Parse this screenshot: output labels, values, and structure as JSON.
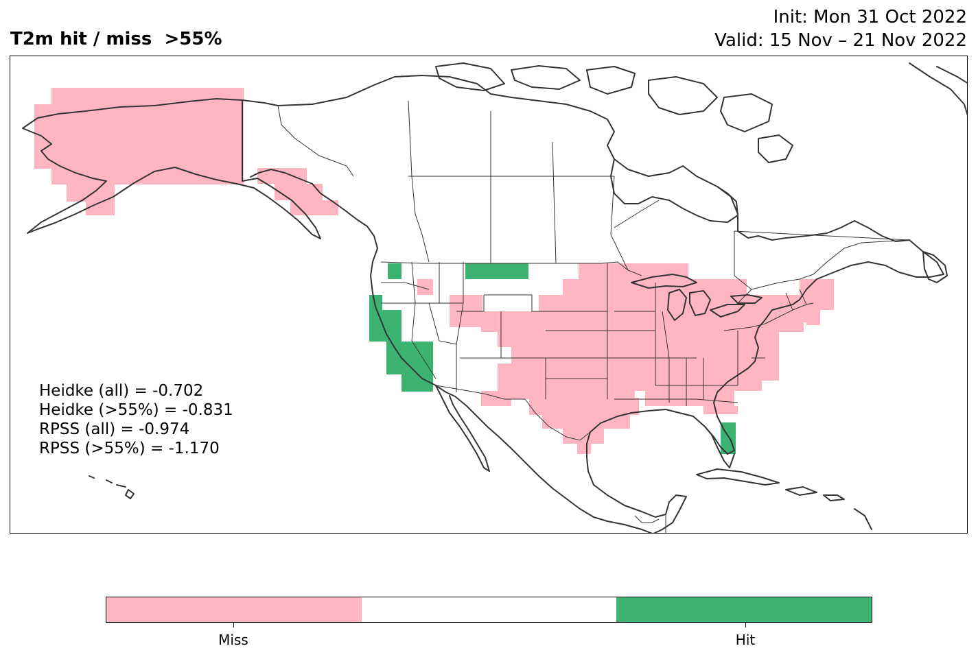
{
  "title": "T2m hit / miss  >55%",
  "init_text": "Init: Mon 31 Oct 2022",
  "valid_text": "Valid: 15 Nov – 21 Nov 2022",
  "stats": [
    "Heidke (all) = -0.702",
    "Heidke (>55%) = -0.831",
    "RPSS (all) = -0.974",
    "RPSS (>55%) = -1.170"
  ],
  "colors": {
    "miss": "#ffb6c1",
    "neutral": "#ffffff",
    "hit": "#3cb371",
    "coast": "#333333"
  },
  "colorbar": {
    "categories": [
      "Miss",
      "",
      "Hit"
    ],
    "tick_labels": [
      "Miss",
      "Hit"
    ]
  },
  "chart_data": {
    "type": "heatmap",
    "title": "T2m hit / miss  >55%",
    "subtitle": [
      "Init: Mon 31 Oct 2022",
      "Valid: 15 Nov – 21 Nov 2022"
    ],
    "categories": [
      "Miss",
      "",
      "Hit"
    ],
    "regions": [
      {
        "name": "Alaska",
        "category": "Miss"
      },
      {
        "name": "Alaska Panhandle",
        "category": "Miss"
      },
      {
        "name": "Northern Idaho / Montana",
        "category": "Miss"
      },
      {
        "name": "Wyoming / Colorado",
        "category": "Miss"
      },
      {
        "name": "Central and Eastern United States",
        "category": "Miss"
      },
      {
        "name": "Texas",
        "category": "Miss"
      },
      {
        "name": "Northeast United States",
        "category": "Miss"
      },
      {
        "name": "Western Washington",
        "category": "Hit"
      },
      {
        "name": "Northern Montana",
        "category": "Hit"
      },
      {
        "name": "California / Nevada",
        "category": "Hit"
      },
      {
        "name": "South Florida",
        "category": "Hit"
      }
    ]
  }
}
